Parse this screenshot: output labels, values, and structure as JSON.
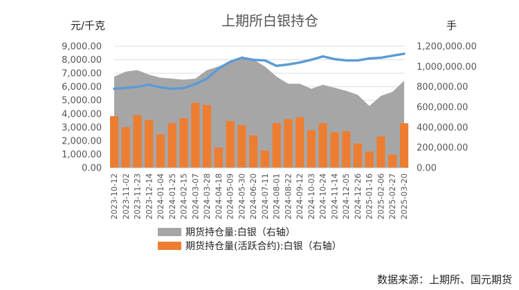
{
  "chart_data": {
    "type": "area",
    "title": "上期所白银持仓",
    "left_unit": "元/千克",
    "right_unit": "手",
    "y_left_ticks": [
      "9,000.00",
      "8,000.00",
      "7,000.00",
      "6,000.00",
      "5,000.00",
      "4,000.00",
      "3,000.00",
      "2,000.00",
      "1,000.00",
      "0.00"
    ],
    "y_right_ticks": [
      "1,200,000.00",
      "1,000,000.00",
      "800,000.00",
      "600,000.00",
      "400,000.00",
      "200,000.00",
      "0.00"
    ],
    "y_left_range": [
      0,
      9000
    ],
    "y_right_range": [
      0,
      1200000
    ],
    "x_ticks": [
      "2023-10-12",
      "2023-11-02",
      "2023-11-23",
      "2023-12-14",
      "2024-01-04",
      "2024-01-25",
      "2024-02-15",
      "2024-03-07",
      "2024-03-28",
      "2024-04-18",
      "2024-05-09",
      "2024-05-30",
      "2024-06-20",
      "2024-07-11",
      "2024-08-01",
      "2024-08-22",
      "2024-09-12",
      "2024-10-03",
      "2024-10-24",
      "2024-11-14",
      "2024-12-05",
      "2024-12-26",
      "2025-01-16",
      "2025-02-06",
      "2025-02-27",
      "2025-03-20"
    ],
    "legend_position": "bottom-left",
    "series": [
      {
        "name": "期货持仓量:白银（右轴）",
        "kind": "area",
        "axis": "right",
        "color": "#a6a6a6",
        "x": [
          "2023-10-12",
          "2023-11-02",
          "2023-11-23",
          "2023-12-14",
          "2024-01-04",
          "2024-01-25",
          "2024-02-15",
          "2024-03-07",
          "2024-03-28",
          "2024-04-18",
          "2024-05-09",
          "2024-05-30",
          "2024-06-20",
          "2024-07-11",
          "2024-08-01",
          "2024-08-22",
          "2024-09-12",
          "2024-10-03",
          "2024-10-24",
          "2024-11-14",
          "2024-12-05",
          "2024-12-26",
          "2025-01-16",
          "2025-02-06",
          "2025-02-27",
          "2025-03-20"
        ],
        "values": [
          900000,
          950000,
          965000,
          920000,
          890000,
          880000,
          870000,
          880000,
          965000,
          1000000,
          1050000,
          1100000,
          1070000,
          1000000,
          900000,
          830000,
          830000,
          780000,
          820000,
          790000,
          760000,
          720000,
          610000,
          710000,
          750000,
          860000
        ]
      },
      {
        "name": "期货持仓量(活跃合约):白银（右轴）",
        "kind": "bar",
        "axis": "right",
        "color": "#ed7d31",
        "x": [
          "2023-10-12",
          "2023-11-02",
          "2023-11-23",
          "2023-12-14",
          "2024-01-04",
          "2024-01-25",
          "2024-02-15",
          "2024-03-07",
          "2024-03-28",
          "2024-04-18",
          "2024-05-09",
          "2024-05-30",
          "2024-06-20",
          "2024-07-11",
          "2024-08-01",
          "2024-08-22",
          "2024-09-12",
          "2024-10-03",
          "2024-10-24",
          "2024-11-14",
          "2024-12-05",
          "2024-12-26",
          "2025-01-16",
          "2025-02-06",
          "2025-02-27",
          "2025-03-20"
        ],
        "values": [
          510000,
          400000,
          520000,
          470000,
          330000,
          440000,
          490000,
          640000,
          620000,
          200000,
          460000,
          420000,
          320000,
          170000,
          440000,
          480000,
          500000,
          370000,
          440000,
          350000,
          360000,
          240000,
          160000,
          310000,
          130000,
          440000
        ]
      },
      {
        "name": "",
        "kind": "line",
        "axis": "left",
        "color": "#5b9bd5",
        "x": [
          "2023-10-12",
          "2023-11-02",
          "2023-11-23",
          "2023-12-14",
          "2024-01-04",
          "2024-01-25",
          "2024-02-15",
          "2024-03-07",
          "2024-03-28",
          "2024-04-18",
          "2024-05-09",
          "2024-05-30",
          "2024-06-20",
          "2024-07-11",
          "2024-08-01",
          "2024-08-22",
          "2024-09-12",
          "2024-10-03",
          "2024-10-24",
          "2024-11-14",
          "2024-12-05",
          "2024-12-26",
          "2025-01-16",
          "2025-02-06",
          "2025-02-27",
          "2025-03-20"
        ],
        "values": [
          5850,
          5920,
          6000,
          6150,
          5950,
          5850,
          5900,
          6200,
          6600,
          7350,
          7850,
          8150,
          8000,
          7950,
          7550,
          7650,
          7800,
          8000,
          8250,
          8050,
          7950,
          7950,
          8100,
          8150,
          8300,
          8450
        ]
      }
    ]
  },
  "source_text": "数据来源：上期所、国元期货"
}
